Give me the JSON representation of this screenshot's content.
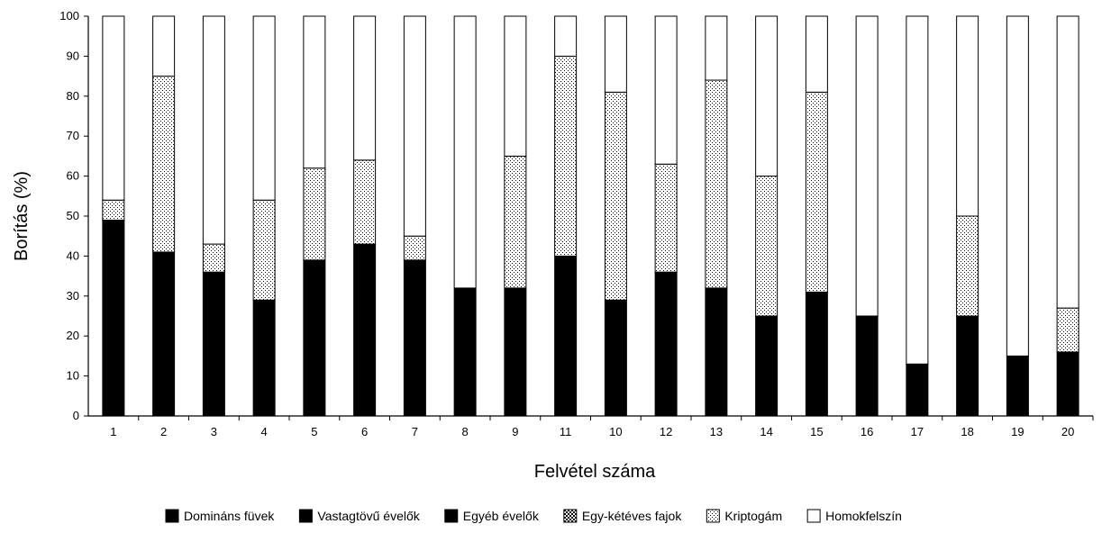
{
  "chart_data": {
    "type": "bar",
    "stacked": true,
    "title": "",
    "xlabel": "Felvétel száma",
    "ylabel": "Borítás (%)",
    "ylim": [
      0,
      100
    ],
    "yticks": [
      "0",
      "10",
      "20",
      "30",
      "40",
      "50",
      "60",
      "70",
      "80",
      "90",
      "100"
    ],
    "categories": [
      "1",
      "2",
      "3",
      "4",
      "5",
      "6",
      "7",
      "8",
      "9",
      "11",
      "10",
      "12",
      "13",
      "14",
      "15",
      "16",
      "17",
      "18",
      "19",
      "20"
    ],
    "series": [
      {
        "name": "Domináns füvek",
        "values": [
          49,
          41,
          36,
          29,
          39,
          43,
          39,
          32,
          32,
          40,
          29,
          36,
          32,
          25,
          31,
          25,
          13,
          25,
          15,
          16
        ],
        "color": "#000000",
        "pattern": "solid"
      },
      {
        "name": "Vastagtövű évelők",
        "values": [
          0,
          0,
          0,
          0,
          0,
          0,
          0,
          0,
          0,
          0,
          0,
          0,
          0,
          0,
          0,
          0,
          0,
          0,
          0,
          0
        ],
        "color": "#000000",
        "pattern": "solid"
      },
      {
        "name": "Egyéb évelők",
        "values": [
          0,
          0,
          0,
          0,
          0,
          0,
          0,
          0,
          0,
          0,
          0,
          0,
          0,
          0,
          0,
          0,
          0,
          0,
          0,
          0
        ],
        "color": "#000000",
        "pattern": "solid"
      },
      {
        "name": "Egy-kétéves fajok",
        "values": [
          0,
          0,
          0,
          0,
          0,
          0,
          0,
          0,
          0,
          0,
          0,
          0,
          0,
          0,
          0,
          0,
          0,
          0,
          0,
          0
        ],
        "color": "#333333",
        "pattern": "checker"
      },
      {
        "name": "Kriptogám",
        "values": [
          5,
          44,
          7,
          25,
          23,
          21,
          6,
          0,
          33,
          50,
          52,
          27,
          52,
          35,
          50,
          0,
          0,
          25,
          0,
          11
        ],
        "color": "#ffffff",
        "pattern": "dots"
      },
      {
        "name": "Homokfelszín",
        "values": [
          46,
          15,
          57,
          46,
          38,
          36,
          55,
          68,
          35,
          10,
          19,
          37,
          16,
          40,
          19,
          75,
          87,
          50,
          85,
          73
        ],
        "color": "#ffffff",
        "pattern": "none"
      }
    ],
    "legend": {
      "position": "bottom"
    },
    "grid": false
  }
}
